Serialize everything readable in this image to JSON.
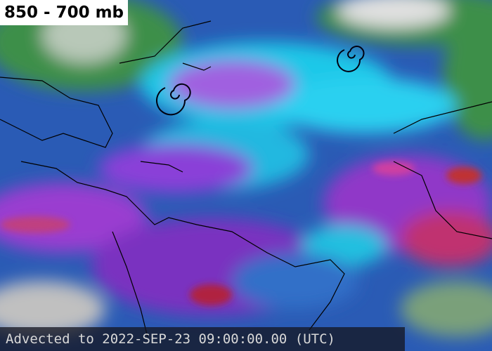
{
  "header": {
    "title": "850 - 700 mb"
  },
  "footer": {
    "timestamp": "Advected to 2022-SEP-23 09:00:00.00 (UTC)"
  }
}
